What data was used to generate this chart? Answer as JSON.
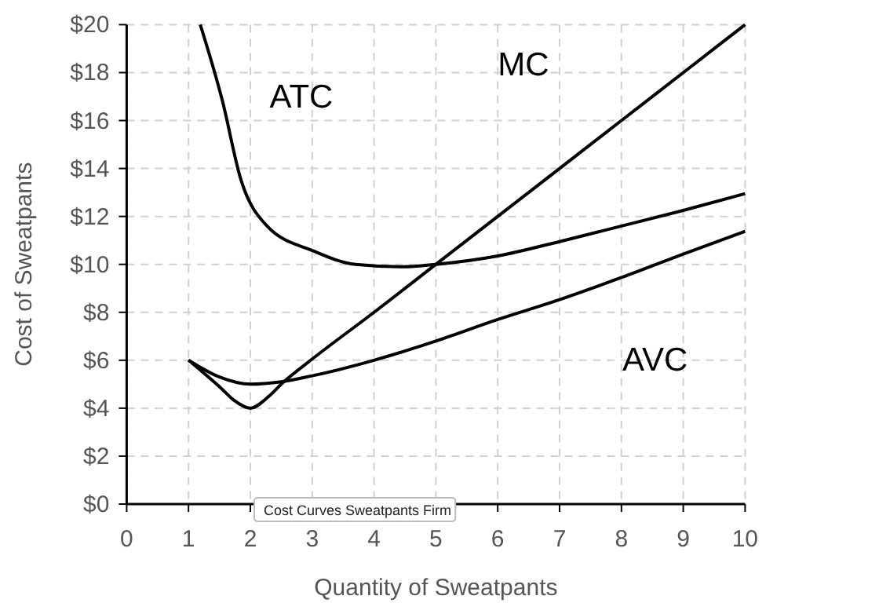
{
  "chart_data": {
    "type": "line",
    "xlabel": "Quantity of Sweatpants",
    "ylabel": "Cost of Sweatpants",
    "xlim": [
      0,
      10
    ],
    "xticks": [
      0,
      1,
      2,
      3,
      4,
      5,
      6,
      7,
      8,
      9,
      10
    ],
    "ylim": [
      0,
      20
    ],
    "yticks": [
      {
        "value": 0,
        "label": "$0"
      },
      {
        "value": 2,
        "label": "$2"
      },
      {
        "value": 4,
        "label": "$4"
      },
      {
        "value": 6,
        "label": "$6"
      },
      {
        "value": 8,
        "label": "$8"
      },
      {
        "value": 10,
        "label": "$10"
      },
      {
        "value": 12,
        "label": "$12"
      },
      {
        "value": 14,
        "label": "$14"
      },
      {
        "value": 16,
        "label": "$16"
      },
      {
        "value": 18,
        "label": "$18"
      },
      {
        "value": 20,
        "label": "$20"
      }
    ],
    "grid": true,
    "marker": "none",
    "line_style": "solid",
    "series": [
      {
        "name": "ATC",
        "color": "#000000",
        "x": [
          1.19,
          1.55,
          1.84,
          2.27,
          3.03,
          3.7,
          4.47,
          5,
          6,
          7,
          8,
          9,
          10
        ],
        "values": [
          20,
          16.8,
          13.6,
          11.6,
          10.55,
          10.0,
          9.9,
          10,
          10.35,
          10.95,
          11.6,
          12.25,
          12.95
        ]
      },
      {
        "name": "MC",
        "color": "#000000",
        "x": [
          1,
          1.5,
          1.75,
          2,
          2.3,
          2.52,
          3,
          4,
          5,
          6,
          7,
          8,
          9,
          10
        ],
        "values": [
          6,
          4.9,
          4.3,
          4,
          4.5,
          5.05,
          6.05,
          8,
          10,
          12,
          14,
          16,
          18,
          20
        ]
      },
      {
        "name": "AVC",
        "color": "#000000",
        "x": [
          1,
          1.5,
          2,
          2.5,
          3,
          4,
          5,
          6,
          7,
          8,
          9,
          10
        ],
        "values": [
          6,
          5.3,
          5.0,
          5.1,
          5.35,
          6.0,
          6.8,
          7.7,
          8.53,
          9.45,
          10.43,
          11.38
        ]
      }
    ],
    "annotations": [
      "Cost Curves Sweatpants Firm"
    ]
  }
}
